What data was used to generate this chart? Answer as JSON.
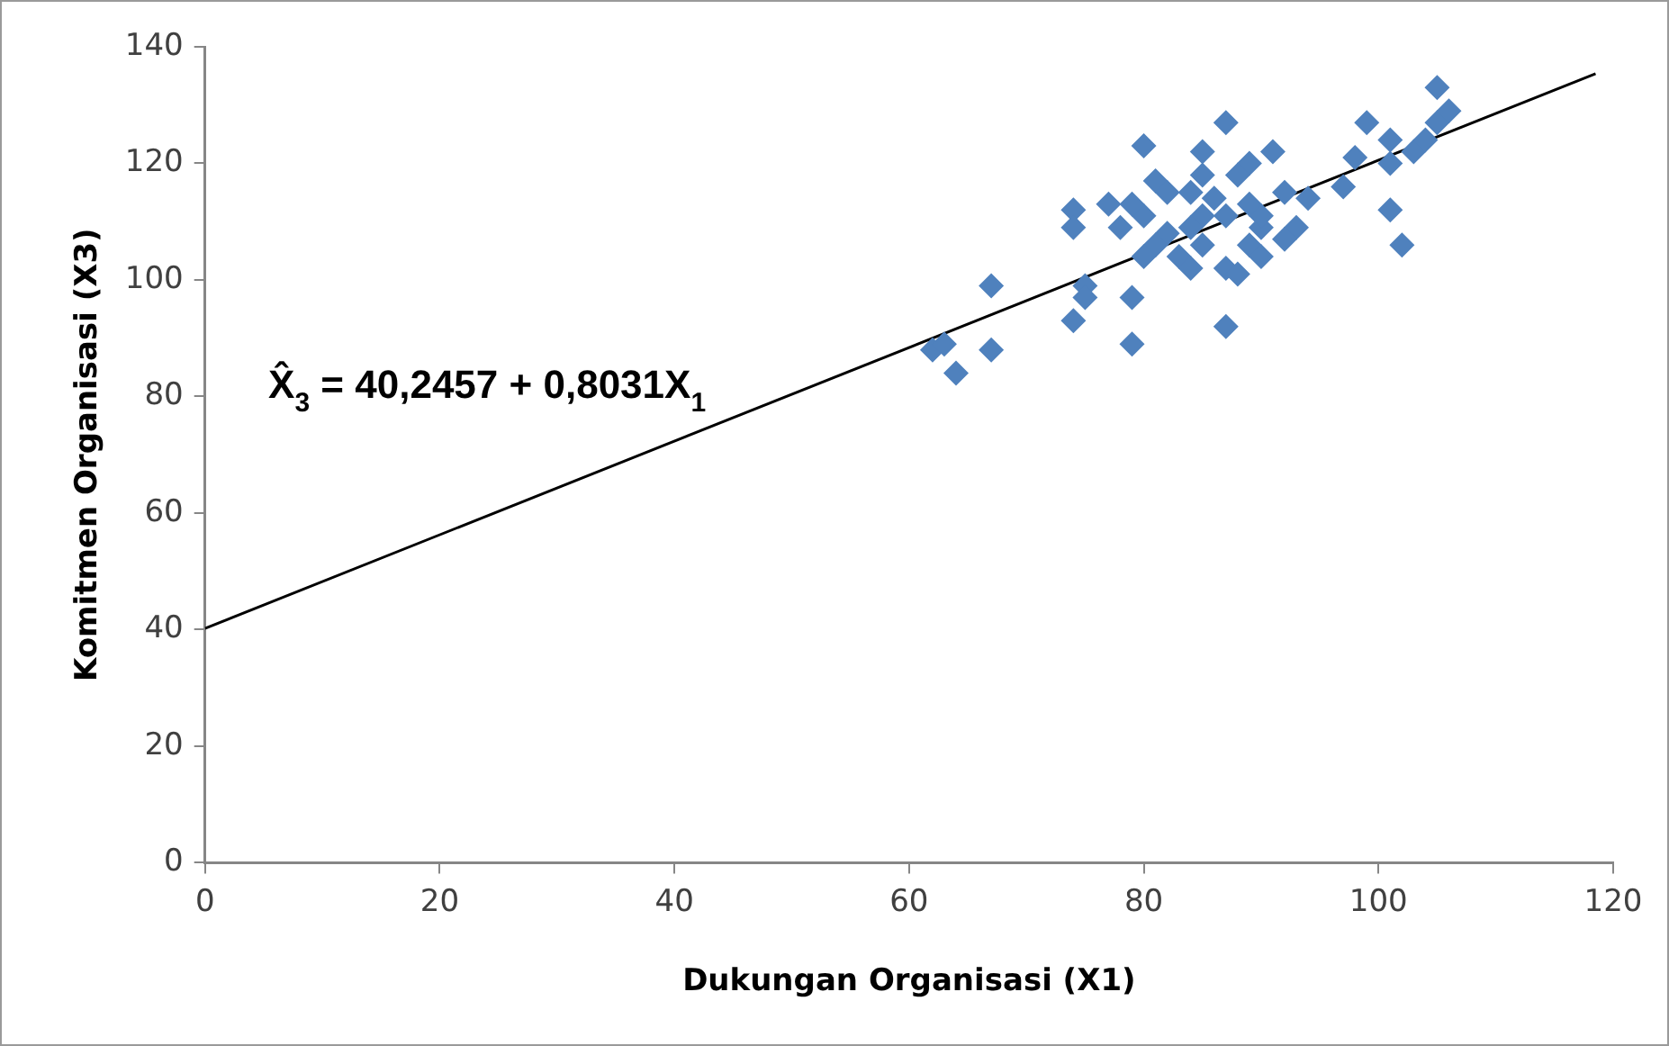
{
  "chart_data": {
    "type": "scatter",
    "xlabel": "Dukungan Organisasi (X1)",
    "ylabel": "Komitmen Organisasi (X3)",
    "xlim": [
      0,
      120
    ],
    "xticks": [
      0,
      20,
      40,
      60,
      80,
      100,
      120
    ],
    "ylim": [
      0,
      140
    ],
    "yticks": [
      0,
      20,
      40,
      60,
      80,
      100,
      120,
      140
    ],
    "grid": false,
    "legend": false,
    "marker": "diamond",
    "annotations": [
      "X̂$_{3}$ = 40,2457 + 0,8031X$_{1}$"
    ],
    "series": [
      {
        "color": "#4f81bd",
        "x": [
          62,
          63,
          64,
          67,
          67,
          74,
          74,
          74,
          75,
          75,
          77,
          79,
          79,
          80,
          80,
          78,
          81,
          87,
          87,
          85,
          85,
          84,
          89,
          91,
          97,
          98,
          99,
          101,
          101,
          101,
          102,
          103,
          105,
          105,
          106,
          104,
          82,
          83,
          84,
          85,
          87,
          88,
          89,
          90,
          90,
          92,
          93,
          94,
          87,
          89,
          85,
          81,
          80,
          79,
          82,
          88,
          90,
          92,
          86,
          84
        ],
        "values": [
          88,
          89,
          84,
          99,
          88,
          112,
          109,
          93,
          99,
          97,
          113,
          89,
          97,
          123,
          111,
          109,
          117,
          127,
          92,
          122,
          118,
          115,
          120,
          122,
          116,
          121,
          127,
          124,
          120,
          112,
          106,
          122,
          127,
          133,
          129,
          124,
          108,
          104,
          102,
          106,
          102,
          101,
          106,
          109,
          111,
          115,
          109,
          114,
          111,
          113,
          111,
          106,
          104,
          113,
          115,
          118,
          104,
          107,
          114,
          109
        ]
      },
      {
        "type": "line",
        "color": "#000000",
        "marker": "none",
        "x": [
          0,
          118.5
        ],
        "values": [
          40.2,
          135.4
        ]
      }
    ]
  }
}
